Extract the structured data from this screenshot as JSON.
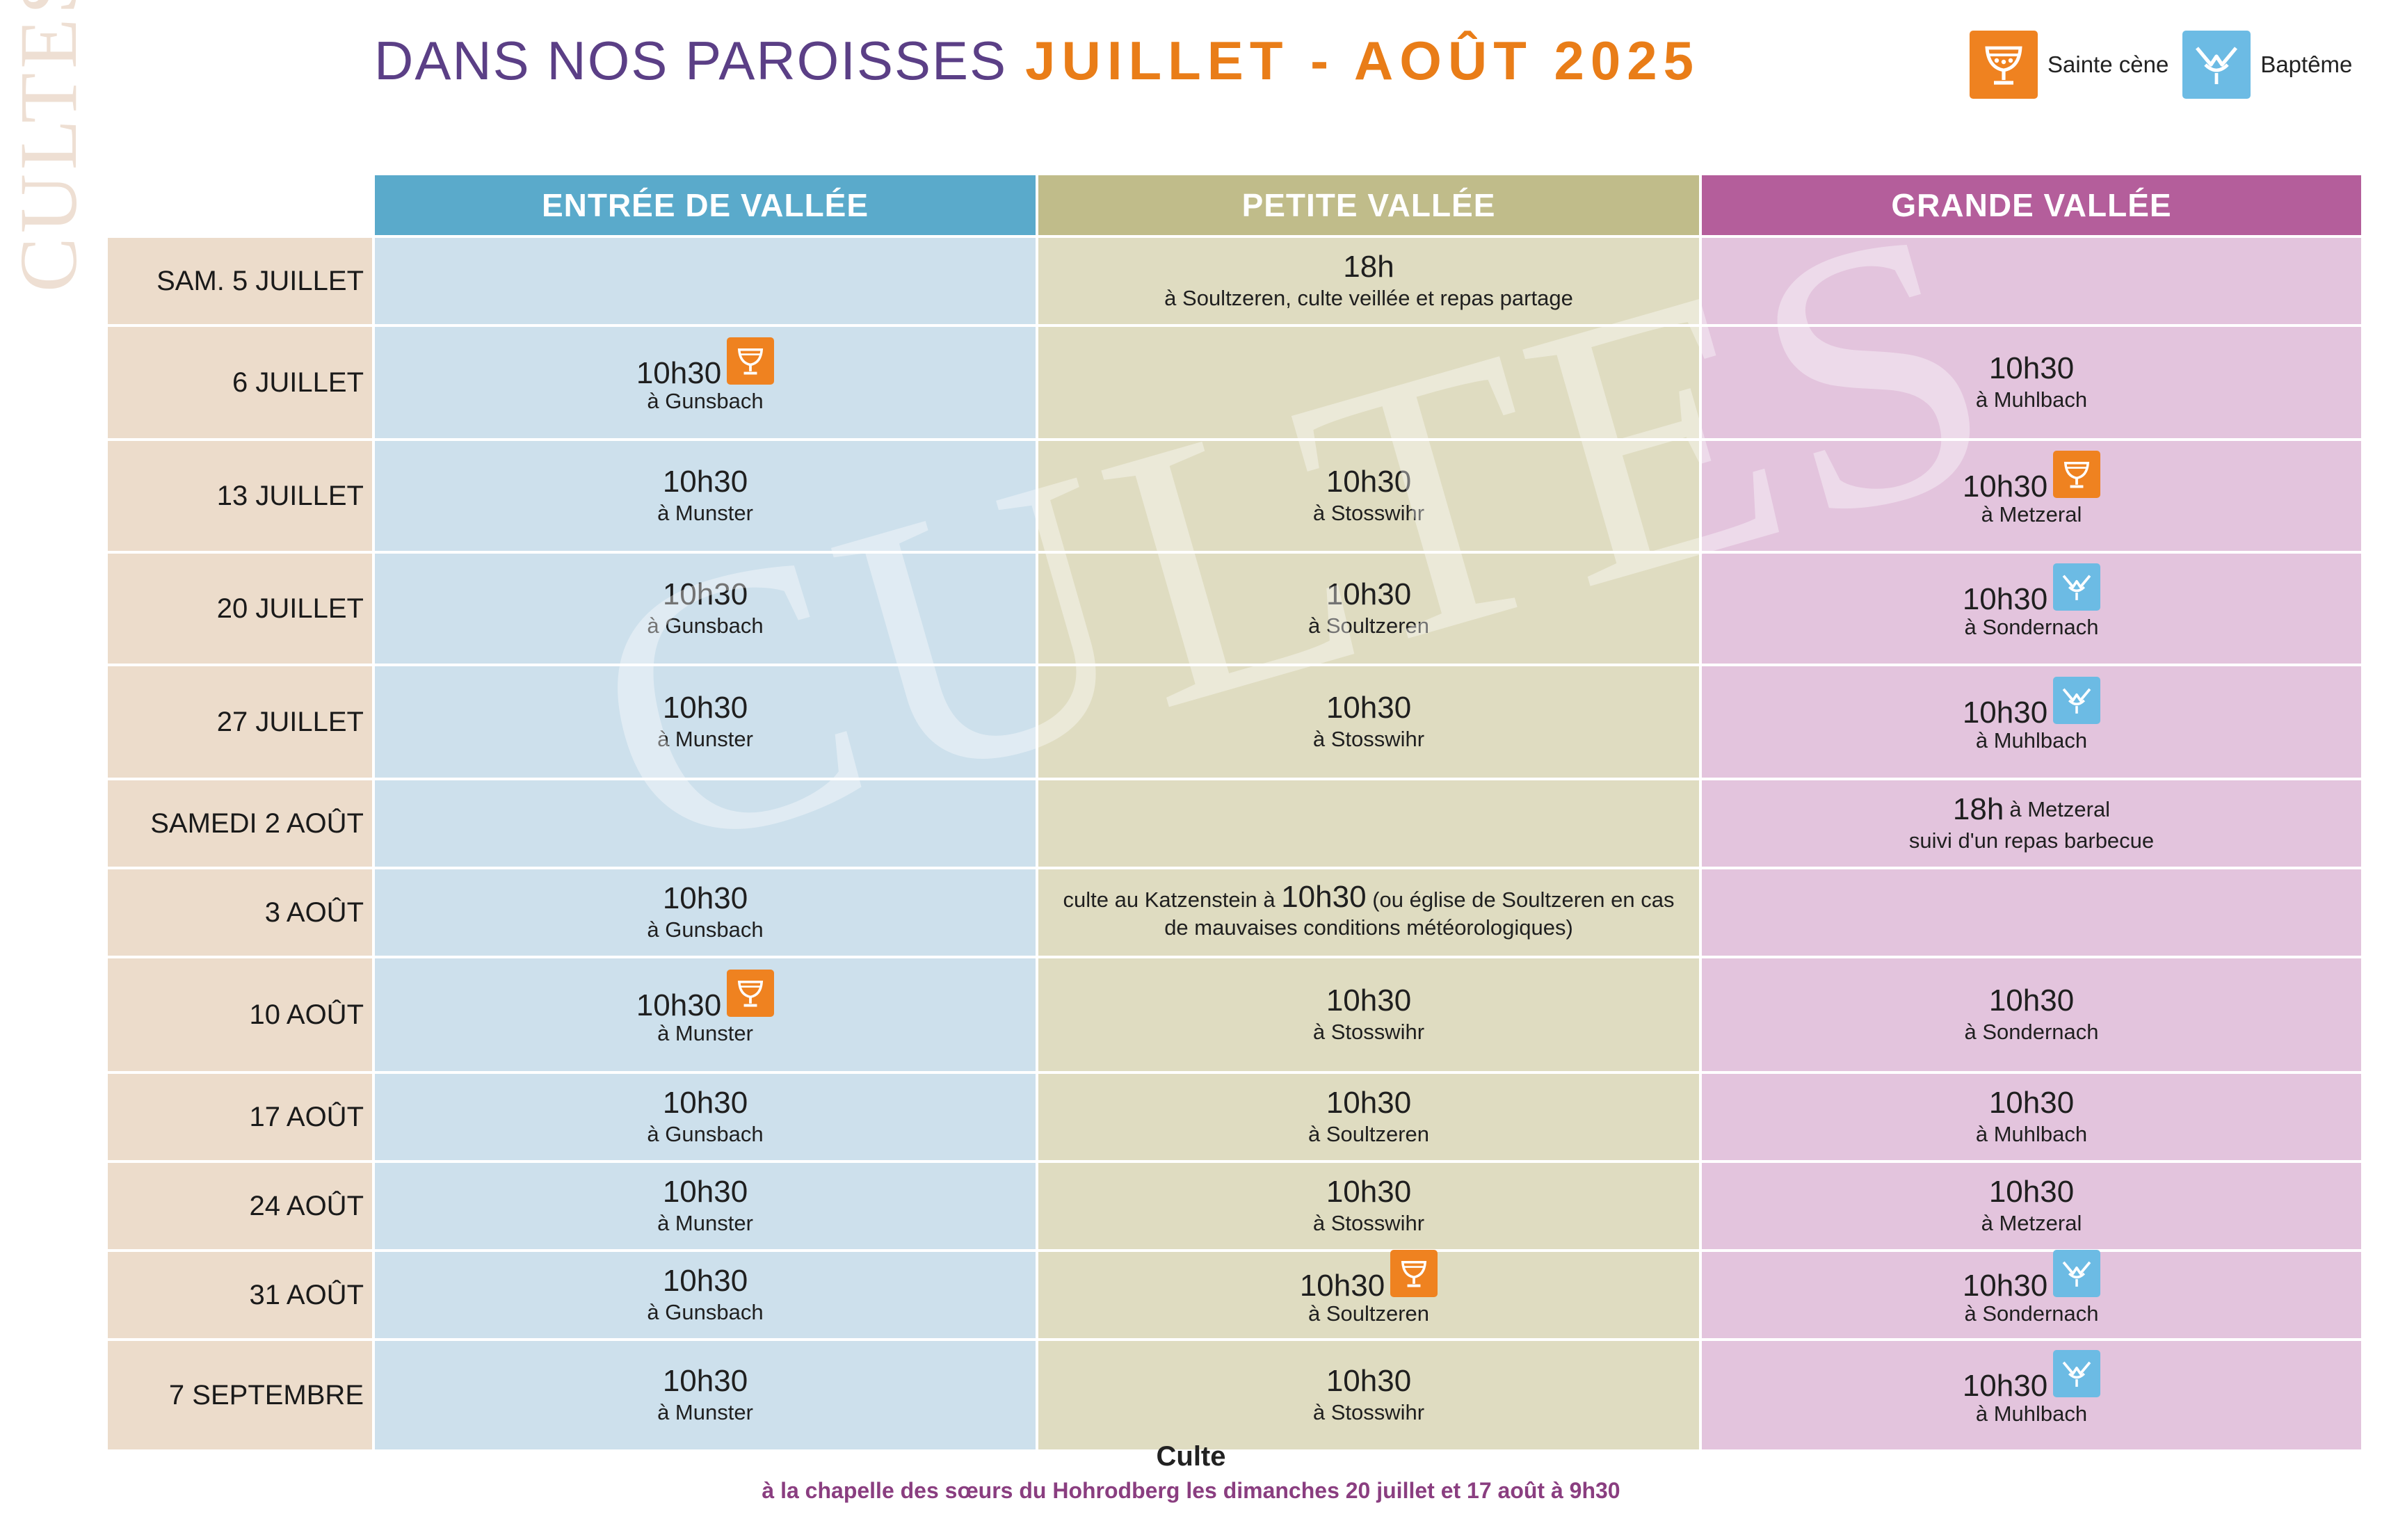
{
  "header": {
    "title_part1": "DANS NOS PAROISSES",
    "title_part2": "JUILLET - AOÛT 2025"
  },
  "legend": [
    {
      "icon": "chalice-icon",
      "label": "Sainte cène",
      "color": "#ef8220"
    },
    {
      "icon": "baptism-icon",
      "label": "Baptême",
      "color": "#6cbbe4"
    }
  ],
  "side_label": "CULTES",
  "watermark": "CULTES",
  "columns": [
    {
      "label": "ENTRÉE DE VALLÉE",
      "color": "#5aaacb"
    },
    {
      "label": "PETITE VALLÉE",
      "color": "#c0bc8a"
    },
    {
      "label": "GRANDE VALLÉE",
      "color": "#b45e9b"
    }
  ],
  "rows": [
    {
      "date": "SAM. 5 JUILLET",
      "cells": [
        {},
        {
          "time": "18h",
          "place": "à Soultzeren, culte veillée et repas partage"
        },
        {}
      ]
    },
    {
      "date": "6 JUILLET",
      "cells": [
        {
          "time": "10h30",
          "place": "à Gunsbach",
          "icon": "chalice-icon"
        },
        {},
        {
          "time": "10h30",
          "place": "à Muhlbach"
        }
      ]
    },
    {
      "date": "13 JUILLET",
      "cells": [
        {
          "time": "10h30",
          "place": "à Munster"
        },
        {
          "time": "10h30",
          "place": "à Stosswihr"
        },
        {
          "time": "10h30",
          "place": "à Metzeral",
          "icon": "chalice-icon"
        }
      ]
    },
    {
      "date": "20 JUILLET",
      "cells": [
        {
          "time": "10h30",
          "place": "à Gunsbach"
        },
        {
          "time": "10h30",
          "place": "à Soultzeren"
        },
        {
          "time": "10h30",
          "place": "à Sondernach",
          "icon": "baptism-icon"
        }
      ]
    },
    {
      "date": "27 JUILLET",
      "cells": [
        {
          "time": "10h30",
          "place": "à Munster"
        },
        {
          "time": "10h30",
          "place": "à Stosswihr"
        },
        {
          "time": "10h30",
          "place": "à Muhlbach",
          "icon": "baptism-icon"
        }
      ]
    },
    {
      "date": "SAMEDI 2 AOÛT",
      "cells": [
        {},
        {},
        {
          "time": "18h",
          "inline_place": "à Metzeral",
          "place": "suivi d'un repas barbecue"
        }
      ]
    },
    {
      "date": "3 AOÛT",
      "cells": [
        {
          "time": "10h30",
          "place": "à Gunsbach"
        },
        {
          "pre": "culte au Katzenstein à",
          "time": "10h30",
          "post": "(ou église de Soultzeren en cas",
          "place": "de mauvaises conditions météorologiques)"
        },
        {}
      ]
    },
    {
      "date": "10 AOÛT",
      "cells": [
        {
          "time": "10h30",
          "place": "à Munster",
          "icon": "chalice-icon"
        },
        {
          "time": "10h30",
          "place": "à Stosswihr"
        },
        {
          "time": "10h30",
          "place": "à Sondernach"
        }
      ]
    },
    {
      "date": "17 AOÛT",
      "cells": [
        {
          "time": "10h30",
          "place": "à Gunsbach"
        },
        {
          "time": "10h30",
          "place": "à Soultzeren"
        },
        {
          "time": "10h30",
          "place": "à Muhlbach"
        }
      ]
    },
    {
      "date": "24 AOÛT",
      "cells": [
        {
          "time": "10h30",
          "place": "à Munster"
        },
        {
          "time": "10h30",
          "place": "à Stosswihr"
        },
        {
          "time": "10h30",
          "place": "à Metzeral"
        }
      ]
    },
    {
      "date": "31 AOÛT",
      "cells": [
        {
          "time": "10h30",
          "place": "à Gunsbach"
        },
        {
          "time": "10h30",
          "place": "à Soultzeren",
          "icon": "chalice-icon"
        },
        {
          "time": "10h30",
          "place": "à Sondernach",
          "icon": "baptism-icon"
        }
      ]
    },
    {
      "date": "7 SEPTEMBRE",
      "cells": [
        {
          "time": "10h30",
          "place": "à Munster"
        },
        {
          "time": "10h30",
          "place": "à Stosswihr"
        },
        {
          "time": "10h30",
          "place": "à Muhlbach",
          "icon": "baptism-icon"
        }
      ]
    }
  ],
  "footer": {
    "title": "Culte",
    "text": "à la chapelle des sœurs du Hohrodberg les dimanches 20 juillet et 17 août à 9h30"
  }
}
